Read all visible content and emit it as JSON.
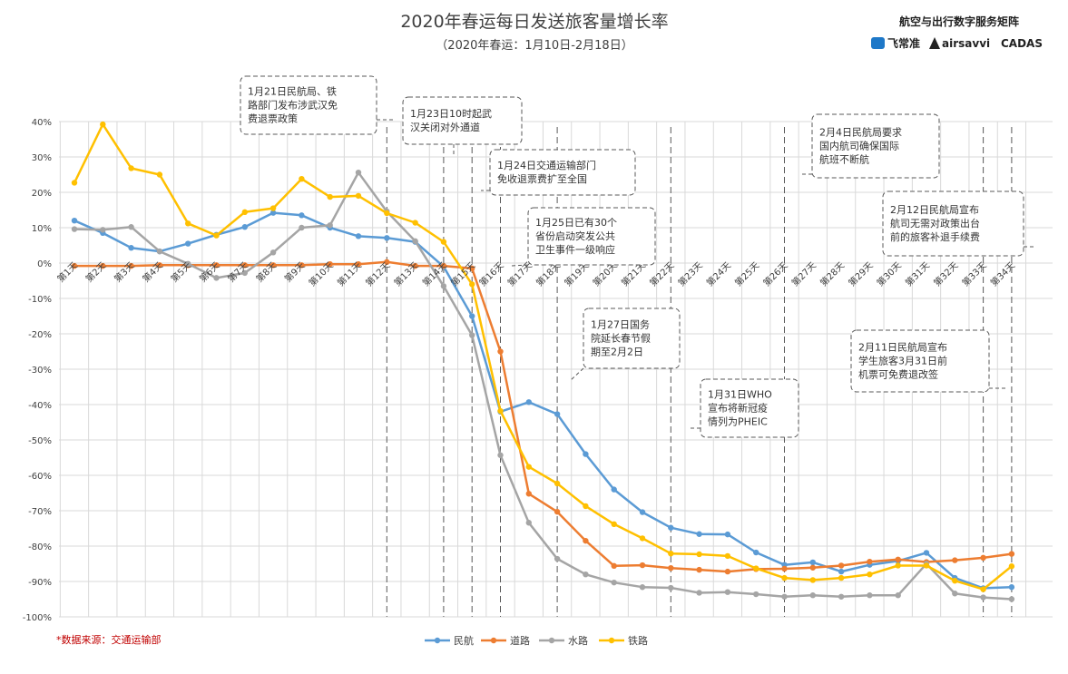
{
  "header": {
    "title": "2020年春运每日发送旅客量增长率",
    "subtitle": "（2020年春运：1月10日-2月18日）"
  },
  "branding": {
    "title": "航空与出行数字服务矩阵",
    "logos": [
      "飞常准",
      "airsavvi",
      "CADAS"
    ]
  },
  "source_note": "*数据来源：交通运输部",
  "colors": {
    "民航": "#5b9bd5",
    "道路": "#ed7d31",
    "水路": "#a5a5a5",
    "铁路": "#ffc000",
    "grid": "#d9d9d9",
    "annotation_border": "#595959",
    "event_line": "#595959"
  },
  "chart_data": {
    "type": "line",
    "title": "2020年春运每日发送旅客量增长率",
    "subtitle": "（2020年春运：1月10日-2月18日）",
    "xlabel": "",
    "ylabel": "",
    "ylim": [
      -100,
      40
    ],
    "ytick_step": 10,
    "y_tick_labels": [
      "40%",
      "30%",
      "20%",
      "10%",
      "0%",
      "-10%",
      "-20%",
      "-30%",
      "-40%",
      "-50%",
      "-60%",
      "-70%",
      "-80%",
      "-90%",
      "-100%"
    ],
    "grid": true,
    "legend_position": "bottom",
    "categories": [
      "第1天",
      "第2天",
      "第3天",
      "第4天",
      "第5天",
      "第6天",
      "第7天",
      "第8天",
      "第9天",
      "第10天",
      "第11天",
      "第12天",
      "第13天",
      "第14天",
      "第15天",
      "第16天",
      "第17天",
      "第18天",
      "第19天",
      "第20天",
      "第21天",
      "第22天",
      "第23天",
      "第24天",
      "第25天",
      "第26天",
      "第27天",
      "第28天",
      "第29天",
      "第30天",
      "第31天",
      "第32天",
      "第33天",
      "第34天"
    ],
    "series": [
      {
        "name": "民航",
        "values": [
          12,
          8.5,
          4.3,
          3.3,
          5.5,
          8,
          10.2,
          14.2,
          13.5,
          10,
          7.6,
          7.1,
          6,
          -1,
          -15,
          -42,
          -39.3,
          -42.7,
          -54,
          -64,
          -70.4,
          -74.8,
          -76.6,
          -76.7,
          -81.8,
          -85.3,
          -84.6,
          -87.2,
          -85.3,
          -84.2,
          -81.9,
          -89,
          -91.9,
          -91.6
        ]
      },
      {
        "name": "道路",
        "values": [
          -0.8,
          -0.8,
          -0.8,
          -0.6,
          -0.6,
          -0.6,
          -0.6,
          -0.6,
          -0.6,
          -0.3,
          -0.3,
          0.3,
          -0.8,
          -0.8,
          -1.5,
          -25,
          -65.2,
          -70.3,
          -78.5,
          -85.6,
          -85.4,
          -86.2,
          -86.7,
          -87.2,
          -86.5,
          -86.4,
          -86.1,
          -85.5,
          -84.4,
          -83.8,
          -84.5,
          -84,
          -83.3,
          -82.2
        ]
      },
      {
        "name": "水路",
        "values": [
          9.6,
          9.4,
          10.2,
          3.3,
          -0.2,
          -4.2,
          -2.8,
          3,
          10,
          10.7,
          25.6,
          14.6,
          6.2,
          -6.5,
          -20.4,
          -54.3,
          -73.4,
          -83.6,
          -88,
          -90.3,
          -91.6,
          -91.8,
          -93.2,
          -93,
          -93.6,
          -94.3,
          -93.9,
          -94.3,
          -93.9,
          -93.9,
          -85,
          -93.4,
          -94.5,
          -95
        ]
      },
      {
        "name": "铁路",
        "values": [
          22.7,
          39.2,
          26.8,
          25,
          11.2,
          7.8,
          14.4,
          15.5,
          23.8,
          18.7,
          19,
          14.1,
          11.4,
          6,
          -6,
          -41.8,
          -57.6,
          -62.3,
          -68.7,
          -73.8,
          -77.8,
          -82.1,
          -82.3,
          -82.8,
          -86.3,
          -89,
          -89.6,
          -89,
          -88,
          -85.5,
          -85.5,
          -89.8,
          -92.2,
          -85.7
        ]
      }
    ],
    "annotations": [
      {
        "lines": [
          "1月21日民航局、铁",
          "路部门发布涉武汉免",
          "费退票政策"
        ],
        "day": 12
      },
      {
        "lines": [
          "1月23日10时起武",
          "汉关闭对外通道"
        ],
        "day": 14
      },
      {
        "lines": [
          "1月24日交通运输部门",
          "免收退票费扩至全国"
        ],
        "day": 15
      },
      {
        "lines": [
          "1月25日已有30个",
          "省份启动突发公共",
          "卫生事件一级响应"
        ],
        "day": 16
      },
      {
        "lines": [
          "1月27日国务",
          "院延长春节假",
          "期至2月2日"
        ],
        "day": 18
      },
      {
        "lines": [
          "1月31日WHO",
          "宣布将新冠疫",
          "情列为PHEIC"
        ],
        "day": 22
      },
      {
        "lines": [
          "2月4日民航局要求",
          "国内航司确保国际",
          "航班不断航"
        ],
        "day": 26
      },
      {
        "lines": [
          "2月11日民航局宣布",
          "学生旅客3月31日前",
          "机票可免费退改签"
        ],
        "day": 33
      },
      {
        "lines": [
          "2月12日民航局宣布",
          "航司无需对政策出台",
          "前的旅客补退手续费"
        ],
        "day": 34
      }
    ]
  }
}
